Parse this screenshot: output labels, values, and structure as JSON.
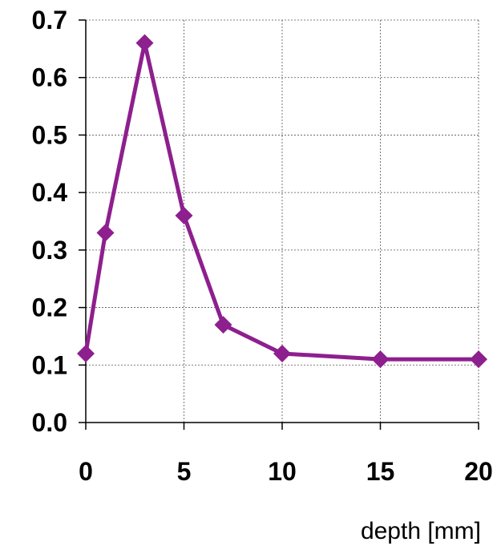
{
  "chart_data": {
    "type": "line",
    "title": "",
    "xlabel": "depth [mm]",
    "ylabel": "",
    "xlim": [
      0,
      20
    ],
    "ylim": [
      0,
      0.7
    ],
    "x_ticks": [
      "0",
      "5",
      "10",
      "15",
      "20"
    ],
    "y_ticks": [
      "0.0",
      "0.1",
      "0.2",
      "0.3",
      "0.4",
      "0.5",
      "0.6",
      "0.7"
    ],
    "grid": true,
    "series": [
      {
        "color": "#8E1F8E",
        "marker": "diamond",
        "x": [
          0,
          1,
          3,
          5,
          7,
          10,
          15,
          20
        ],
        "y": [
          0.12,
          0.33,
          0.66,
          0.36,
          0.17,
          0.12,
          0.11,
          0.11
        ]
      }
    ]
  }
}
